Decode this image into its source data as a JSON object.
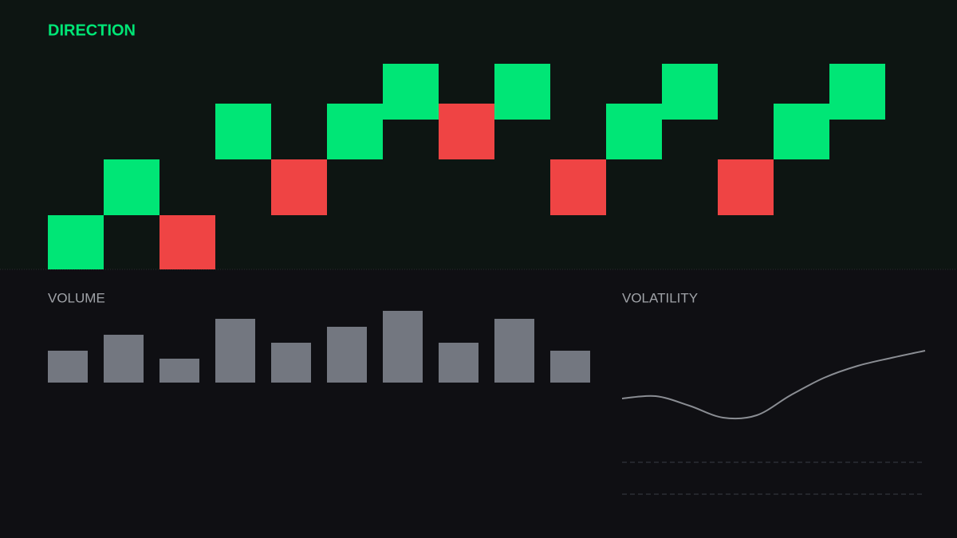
{
  "direction": {
    "title": "DIRECTION",
    "up_color": "#00e676",
    "down_color": "#ef4444",
    "columns": [
      {
        "level": 0,
        "move": "up"
      },
      {
        "level": 1,
        "move": "up"
      },
      {
        "level": 0,
        "move": "down"
      },
      {
        "level": 2,
        "move": "up"
      },
      {
        "level": 1,
        "move": "down"
      },
      {
        "level": 2,
        "move": "up"
      },
      {
        "level": 3,
        "move": "up"
      },
      {
        "level": 2,
        "move": "down"
      },
      {
        "level": 3,
        "move": "up"
      },
      {
        "level": 1,
        "move": "down"
      },
      {
        "level": 2,
        "move": "up"
      },
      {
        "level": 3,
        "move": "up"
      },
      {
        "level": 1,
        "move": "down"
      },
      {
        "level": 2,
        "move": "up"
      },
      {
        "level": 3,
        "move": "up"
      }
    ]
  },
  "volume": {
    "title": "VOLUME",
    "color": "#737780",
    "values": [
      40,
      60,
      30,
      80,
      50,
      70,
      90,
      50,
      80,
      40
    ]
  },
  "volatility": {
    "title": "VOLATILITY",
    "color": "#8a8d93",
    "values": [
      80,
      83,
      71,
      56,
      59,
      84,
      106,
      121,
      131,
      140
    ]
  }
}
